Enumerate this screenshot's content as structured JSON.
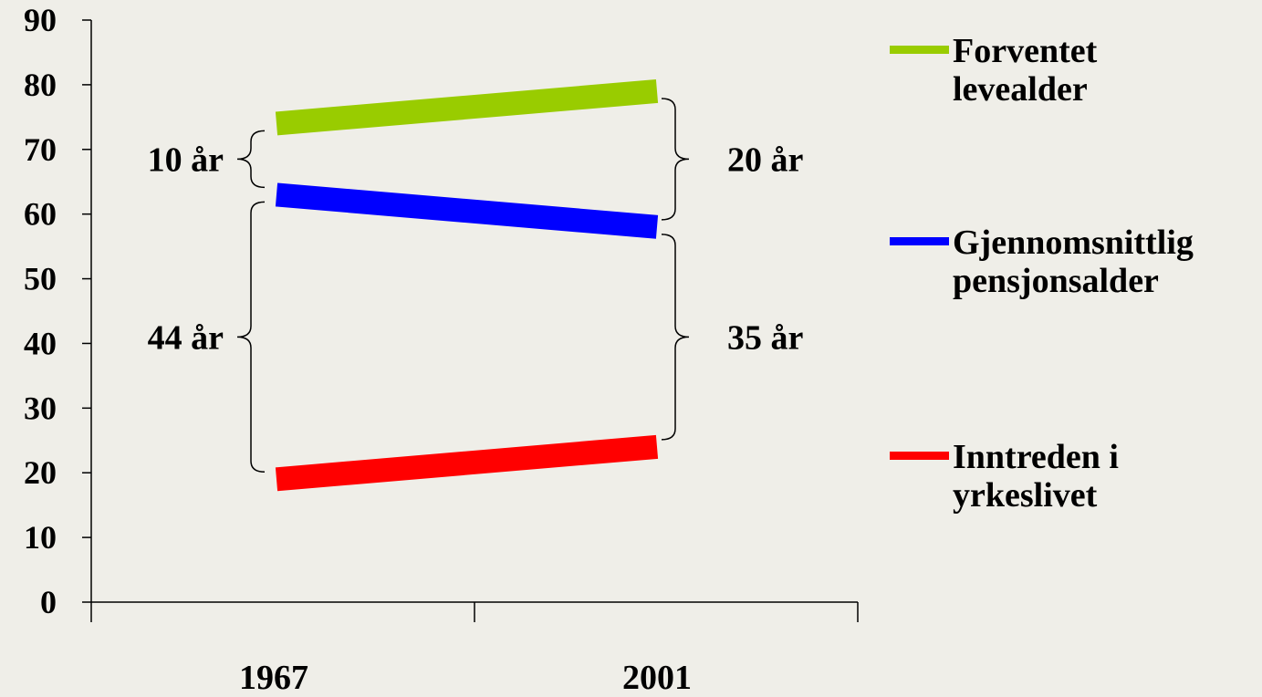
{
  "chart_data": {
    "type": "line",
    "x": [
      "1967",
      "2001"
    ],
    "ylim": [
      0,
      90
    ],
    "yticks": [
      "0",
      "10",
      "20",
      "30",
      "40",
      "50",
      "60",
      "70",
      "80",
      "90"
    ],
    "grid": false,
    "legend_position": "right",
    "series": [
      {
        "name": "Forventet levealder",
        "values": [
          74,
          79
        ],
        "color": "#99cc00"
      },
      {
        "name": "Gjennomsnittlig pensjonsalder",
        "values": [
          63,
          58
        ],
        "color": "#0000ff"
      },
      {
        "name": "Inntreden i yrkeslivet",
        "values": [
          19,
          24
        ],
        "color": "#ff0000"
      }
    ],
    "annotations": [
      {
        "text": "10 år",
        "x": "1967",
        "from": 63,
        "to": 74,
        "side": "left"
      },
      {
        "text": "44 år",
        "x": "1967",
        "from": 19,
        "to": 63,
        "side": "left"
      },
      {
        "text": "20 år",
        "x": "2001",
        "from": 58,
        "to": 79,
        "side": "right"
      },
      {
        "text": "35 år",
        "x": "2001",
        "from": 24,
        "to": 58,
        "side": "right"
      }
    ]
  },
  "legend": {
    "items": [
      {
        "line1": "Forventet",
        "line2": "levealder",
        "color": "#99cc00"
      },
      {
        "line1": "Gjennomsnittlig",
        "line2": "pensjonsalder",
        "color": "#0000ff"
      },
      {
        "line1": "Inntreden i",
        "line2": "yrkeslivet",
        "color": "#ff0000"
      }
    ]
  }
}
